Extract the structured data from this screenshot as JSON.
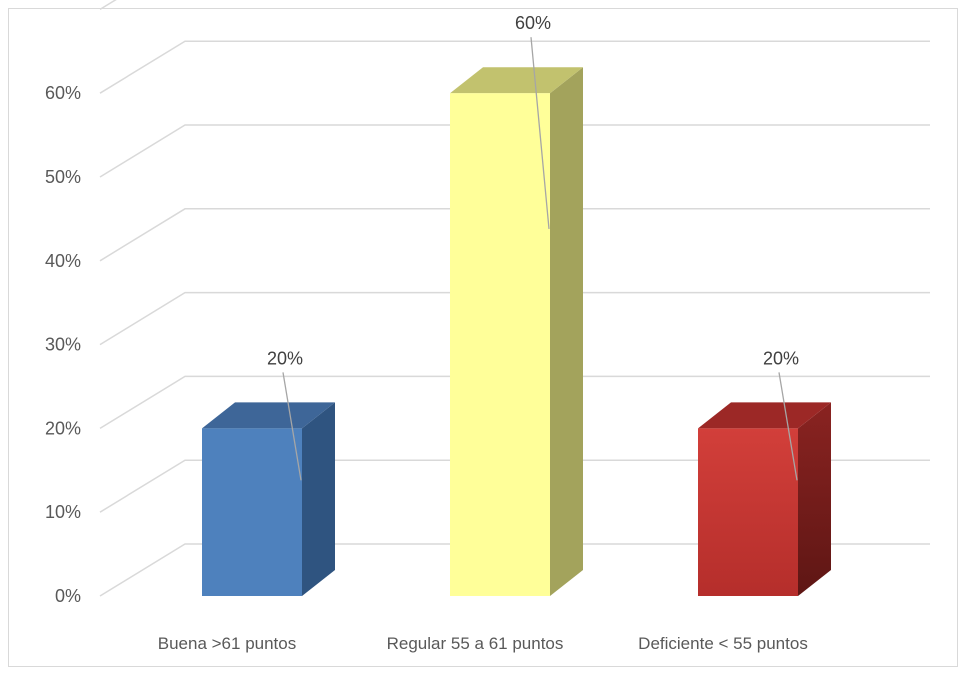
{
  "chart_data": {
    "type": "bar",
    "variant": "3d-column",
    "categories": [
      "Buena >61 puntos",
      "Regular 55 a 61 puntos",
      "Deficiente < 55 puntos"
    ],
    "values": [
      0.2,
      0.6,
      0.2
    ],
    "data_labels": [
      "20%",
      "60%",
      "20%"
    ],
    "y_ticks": [
      "0%",
      "10%",
      "20%",
      "30%",
      "40%",
      "50%",
      "60%"
    ],
    "ylim": [
      0,
      0.6
    ],
    "grid": true,
    "legend": "none",
    "bar_colors": [
      {
        "front": "#4e81bd",
        "side": "#2f5480",
        "top": "#3e6698"
      },
      {
        "front": "#ffff99",
        "side": "#a3a35c",
        "top": "#c2c26e"
      },
      {
        "front": "#c63431",
        "side": "#7a1f1d",
        "top": "#9c2826"
      }
    ],
    "colors": {
      "grid": "#d9d9d9",
      "tick_text": "#595959",
      "leader": "#a6a6a6"
    }
  }
}
